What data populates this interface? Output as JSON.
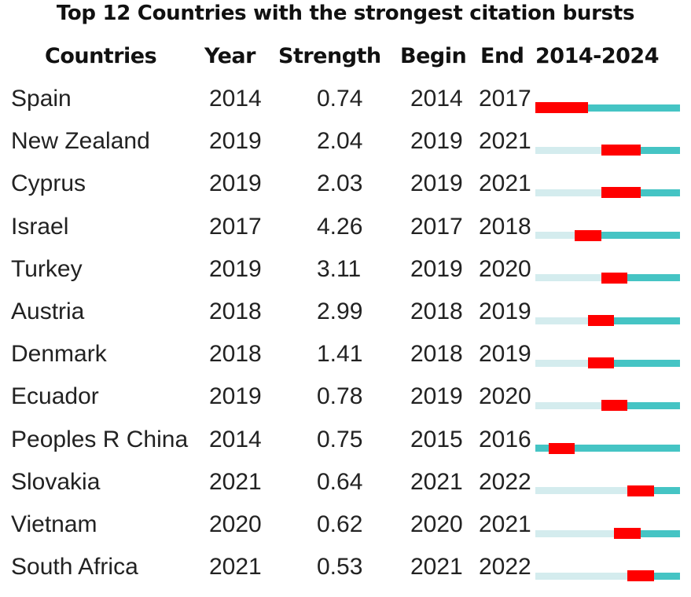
{
  "chart_data": {
    "type": "table",
    "title": "Top 12 Countries with the strongest citation bursts",
    "columns": [
      "Countries",
      "Year",
      "Strength",
      "Begin",
      "End",
      "2014-2024"
    ],
    "range": [
      2014,
      2024
    ],
    "colors": {
      "burst": "#ff0000",
      "active": "#45c4c4",
      "inactive": "#d4ecee"
    },
    "rows": [
      {
        "country": "Spain",
        "year": "2014",
        "strength": "0.74",
        "begin": "2014",
        "end": "2017"
      },
      {
        "country": "New Zealand",
        "year": "2019",
        "strength": "2.04",
        "begin": "2019",
        "end": "2021"
      },
      {
        "country": "Cyprus",
        "year": "2019",
        "strength": "2.03",
        "begin": "2019",
        "end": "2021"
      },
      {
        "country": "Israel",
        "year": "2017",
        "strength": "4.26",
        "begin": "2017",
        "end": "2018"
      },
      {
        "country": "Turkey",
        "year": "2019",
        "strength": "3.11",
        "begin": "2019",
        "end": "2020"
      },
      {
        "country": "Austria",
        "year": "2018",
        "strength": "2.99",
        "begin": "2018",
        "end": "2019"
      },
      {
        "country": "Denmark",
        "year": "2018",
        "strength": "1.41",
        "begin": "2018",
        "end": "2019"
      },
      {
        "country": "Ecuador",
        "year": "2019",
        "strength": "0.78",
        "begin": "2019",
        "end": "2020"
      },
      {
        "country": "Peoples R China",
        "year": "2014",
        "strength": "0.75",
        "begin": "2015",
        "end": "2016"
      },
      {
        "country": "Slovakia",
        "year": "2021",
        "strength": "0.64",
        "begin": "2021",
        "end": "2022"
      },
      {
        "country": "Vietnam",
        "year": "2020",
        "strength": "0.62",
        "begin": "2020",
        "end": "2021"
      },
      {
        "country": "South Africa",
        "year": "2021",
        "strength": "0.53",
        "begin": "2021",
        "end": "2022"
      }
    ]
  }
}
